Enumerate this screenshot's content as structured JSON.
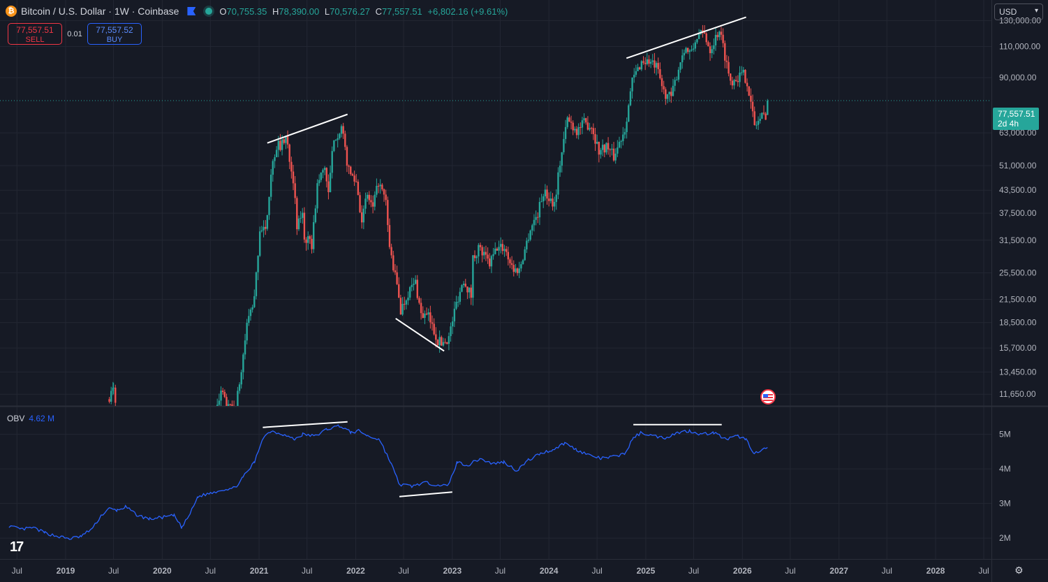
{
  "header": {
    "symbol_title": "Bitcoin / U.S. Dollar · 1W · Coinbase",
    "coin_glyph": "₿",
    "ohlc": {
      "o_label": "O",
      "o": "70,755.35",
      "h_label": "H",
      "h": "78,390.00",
      "l_label": "L",
      "l": "70,576.27",
      "c_label": "C",
      "c": "77,557.51",
      "change": "+6,802.16 (+9.61%)"
    }
  },
  "trade": {
    "sell_price": "77,557.51",
    "sell_label": "SELL",
    "spread": "0.01",
    "buy_price": "77,557.52",
    "buy_label": "BUY"
  },
  "currency_select": {
    "value": "USD"
  },
  "last_price_tag": {
    "price": "77,557.51",
    "countdown": "2d 4h"
  },
  "indicator": {
    "name": "OBV",
    "value": "4.62 M"
  },
  "colors": {
    "up": "#26a69a",
    "down": "#ef5350",
    "obv": "#2962ff",
    "background": "#161a25",
    "grid": "#232733"
  },
  "icons": {
    "logo": "tradingview-logo-icon",
    "settings": "gear-icon",
    "flag": "us-flag-icon"
  },
  "chart_data": [
    {
      "type": "candlestick",
      "title": "Bitcoin / U.S. Dollar · 1W · Coinbase",
      "y_scale": "log",
      "ylim": [
        10800,
        142000
      ],
      "x_ticks": [
        "Jul",
        "2019",
        "Jul",
        "2020",
        "Jul",
        "2021",
        "Jul",
        "2022",
        "Jul",
        "2023",
        "Jul",
        "2024",
        "Jul",
        "2025",
        "Jul",
        "2026",
        "Jul",
        "2027",
        "Jul",
        "2028",
        "Jul"
      ],
      "y_ticks": [
        130000,
        110000,
        90000,
        77557.51,
        63000,
        51000,
        43500,
        37500,
        31500,
        25500,
        21500,
        18500,
        15700,
        13450,
        11650
      ],
      "y_tick_labels": [
        "130,000.00",
        "110,000.00",
        "90,000.00",
        "77,557.51",
        "63,000.00",
        "51,000.00",
        "43,500.00",
        "37,500.00",
        "31,500.00",
        "25,500.00",
        "21,500.00",
        "18,500.00",
        "15,700.00",
        "13,450.00",
        "11,650.00"
      ],
      "price_path": [
        [
          "2019-06-15",
          11500
        ],
        [
          "2019-07-01",
          12000
        ],
        [
          "2019-07-15",
          10500
        ],
        [
          "2020-07-20",
          10000
        ],
        [
          "2020-08-10",
          11800
        ],
        [
          "2020-09-07",
          10600
        ],
        [
          "2020-10-05",
          10700
        ],
        [
          "2020-10-26",
          13500
        ],
        [
          "2020-11-16",
          18300
        ],
        [
          "2020-12-14",
          21500
        ],
        [
          "2021-01-04",
          34000
        ],
        [
          "2021-01-25",
          33000
        ],
        [
          "2021-02-15",
          49000
        ],
        [
          "2021-03-08",
          58000
        ],
        [
          "2021-03-29",
          58500
        ],
        [
          "2021-04-12",
          61500
        ],
        [
          "2021-04-26",
          54000
        ],
        [
          "2021-05-10",
          47000
        ],
        [
          "2021-05-24",
          34000
        ],
        [
          "2021-06-14",
          38000
        ],
        [
          "2021-06-21",
          32000
        ],
        [
          "2021-07-19",
          30500
        ],
        [
          "2021-08-09",
          45000
        ],
        [
          "2021-09-06",
          51000
        ],
        [
          "2021-09-20",
          42000
        ],
        [
          "2021-10-04",
          55000
        ],
        [
          "2021-10-18",
          62000
        ],
        [
          "2021-11-08",
          65000
        ],
        [
          "2021-12-06",
          49000
        ],
        [
          "2022-01-03",
          46000
        ],
        [
          "2022-01-24",
          36000
        ],
        [
          "2022-02-14",
          42000
        ],
        [
          "2022-03-07",
          38500
        ],
        [
          "2022-03-28",
          46000
        ],
        [
          "2022-04-25",
          40000
        ],
        [
          "2022-05-09",
          30000
        ],
        [
          "2022-06-13",
          22000
        ],
        [
          "2022-06-20",
          20000
        ],
        [
          "2022-07-18",
          22500
        ],
        [
          "2022-08-15",
          24000
        ],
        [
          "2022-09-05",
          19500
        ],
        [
          "2022-10-03",
          19200
        ],
        [
          "2022-11-07",
          16500
        ],
        [
          "2022-11-21",
          16200
        ],
        [
          "2022-12-19",
          16800
        ],
        [
          "2023-01-16",
          21000
        ],
        [
          "2023-02-13",
          24500
        ],
        [
          "2023-03-13",
          22000
        ],
        [
          "2023-03-20",
          28000
        ],
        [
          "2023-04-10",
          30000
        ],
        [
          "2023-05-22",
          27000
        ],
        [
          "2023-06-19",
          30000
        ],
        [
          "2023-07-17",
          30000
        ],
        [
          "2023-08-21",
          26000
        ],
        [
          "2023-09-11",
          26000
        ],
        [
          "2023-10-23",
          34000
        ],
        [
          "2023-11-20",
          37500
        ],
        [
          "2023-12-11",
          43000
        ],
        [
          "2024-01-22",
          40000
        ],
        [
          "2024-02-12",
          52000
        ],
        [
          "2024-03-11",
          69000
        ],
        [
          "2024-04-15",
          64000
        ],
        [
          "2024-05-13",
          67000
        ],
        [
          "2024-06-10",
          66000
        ],
        [
          "2024-07-08",
          56000
        ],
        [
          "2024-08-05",
          58000
        ],
        [
          "2024-09-02",
          54000
        ],
        [
          "2024-10-14",
          65000
        ],
        [
          "2024-11-11",
          88000
        ],
        [
          "2024-12-16",
          100000
        ],
        [
          "2025-01-13",
          100000
        ],
        [
          "2025-02-10",
          96000
        ],
        [
          "2025-03-10",
          82000
        ],
        [
          "2025-04-07",
          79000
        ],
        [
          "2025-05-05",
          96000
        ],
        [
          "2025-05-26",
          109000
        ],
        [
          "2025-06-23",
          105000
        ],
        [
          "2025-07-14",
          118000
        ],
        [
          "2025-08-11",
          119000
        ],
        [
          "2025-09-01",
          108000
        ],
        [
          "2025-10-06",
          123000
        ],
        [
          "2025-10-20",
          110000
        ],
        [
          "2025-11-17",
          88000
        ],
        [
          "2025-12-08",
          90000
        ],
        [
          "2026-01-05",
          92000
        ],
        [
          "2026-01-19",
          88000
        ],
        [
          "2026-02-02",
          76000
        ],
        [
          "2026-02-16",
          66000
        ],
        [
          "2026-03-02",
          68000
        ],
        [
          "2026-03-16",
          70000
        ],
        [
          "2026-03-30",
          71000
        ],
        [
          "2026-04-06",
          77557.51
        ]
      ],
      "trendlines": [
        [
          [
            "2021-02-01",
            59000
          ],
          [
            "2021-12-01",
            71000
          ]
        ],
        [
          [
            "2022-06-01",
            19000
          ],
          [
            "2022-12-01",
            15400
          ]
        ],
        [
          [
            "2024-10-20",
            102000
          ],
          [
            "2026-01-15",
            133000
          ]
        ]
      ]
    },
    {
      "type": "line",
      "name": "OBV",
      "ylim": [
        1.8,
        5.8
      ],
      "y_ticks": [
        5,
        4,
        3,
        2
      ],
      "y_tick_labels": [
        "5M",
        "4M",
        "3M",
        "2M"
      ],
      "path": [
        [
          "2018-06-01",
          2.35
        ],
        [
          "2018-07-15",
          2.25
        ],
        [
          "2018-09-01",
          2.3
        ],
        [
          "2018-10-15",
          2.15
        ],
        [
          "2018-12-01",
          2.05
        ],
        [
          "2019-01-15",
          1.98
        ],
        [
          "2019-03-01",
          2.05
        ],
        [
          "2019-04-15",
          2.3
        ],
        [
          "2019-05-15",
          2.65
        ],
        [
          "2019-06-15",
          2.85
        ],
        [
          "2019-07-15",
          2.8
        ],
        [
          "2019-08-15",
          2.9
        ],
        [
          "2019-10-01",
          2.65
        ],
        [
          "2019-11-15",
          2.55
        ],
        [
          "2020-01-01",
          2.6
        ],
        [
          "2020-02-15",
          2.65
        ],
        [
          "2020-03-15",
          2.3
        ],
        [
          "2020-04-15",
          2.7
        ],
        [
          "2020-05-15",
          3.2
        ],
        [
          "2020-07-01",
          3.3
        ],
        [
          "2020-08-15",
          3.4
        ],
        [
          "2020-10-01",
          3.45
        ],
        [
          "2020-11-01",
          3.75
        ],
        [
          "2020-12-15",
          4.2
        ],
        [
          "2021-01-15",
          4.9
        ],
        [
          "2021-02-15",
          5.1
        ],
        [
          "2021-04-01",
          5.0
        ],
        [
          "2021-05-15",
          4.85
        ],
        [
          "2021-06-15",
          5.0
        ],
        [
          "2021-08-01",
          4.95
        ],
        [
          "2021-09-15",
          5.15
        ],
        [
          "2021-11-01",
          5.25
        ],
        [
          "2021-12-15",
          5.05
        ],
        [
          "2022-01-15",
          5.1
        ],
        [
          "2022-02-15",
          4.95
        ],
        [
          "2022-04-01",
          4.85
        ],
        [
          "2022-05-15",
          4.15
        ],
        [
          "2022-06-15",
          3.55
        ],
        [
          "2022-08-01",
          3.5
        ],
        [
          "2022-09-15",
          3.6
        ],
        [
          "2022-11-01",
          3.55
        ],
        [
          "2022-12-15",
          3.5
        ],
        [
          "2023-01-20",
          4.2
        ],
        [
          "2023-03-01",
          4.1
        ],
        [
          "2023-04-15",
          4.3
        ],
        [
          "2023-06-01",
          4.15
        ],
        [
          "2023-07-15",
          4.2
        ],
        [
          "2023-09-01",
          3.95
        ],
        [
          "2023-10-15",
          4.25
        ],
        [
          "2023-12-01",
          4.45
        ],
        [
          "2024-01-15",
          4.55
        ],
        [
          "2024-03-01",
          4.75
        ],
        [
          "2024-04-15",
          4.55
        ],
        [
          "2024-06-01",
          4.4
        ],
        [
          "2024-07-15",
          4.3
        ],
        [
          "2024-09-01",
          4.35
        ],
        [
          "2024-10-15",
          4.45
        ],
        [
          "2024-11-15",
          4.9
        ],
        [
          "2024-12-15",
          5.05
        ],
        [
          "2025-02-01",
          4.95
        ],
        [
          "2025-03-15",
          4.9
        ],
        [
          "2025-05-01",
          5.05
        ],
        [
          "2025-06-15",
          5.1
        ],
        [
          "2025-08-01",
          5.0
        ],
        [
          "2025-09-15",
          5.05
        ],
        [
          "2025-11-01",
          4.85
        ],
        [
          "2025-12-15",
          4.95
        ],
        [
          "2026-01-15",
          4.85
        ],
        [
          "2026-02-15",
          4.45
        ],
        [
          "2026-03-10",
          4.5
        ],
        [
          "2026-04-06",
          4.62
        ]
      ],
      "trendlines": [
        [
          [
            "2021-01-15",
            5.2
          ],
          [
            "2021-12-01",
            5.36
          ]
        ],
        [
          [
            "2022-06-15",
            3.2
          ],
          [
            "2023-01-01",
            3.33
          ]
        ],
        [
          [
            "2024-11-15",
            5.28
          ],
          [
            "2025-10-15",
            5.28
          ]
        ]
      ]
    }
  ]
}
